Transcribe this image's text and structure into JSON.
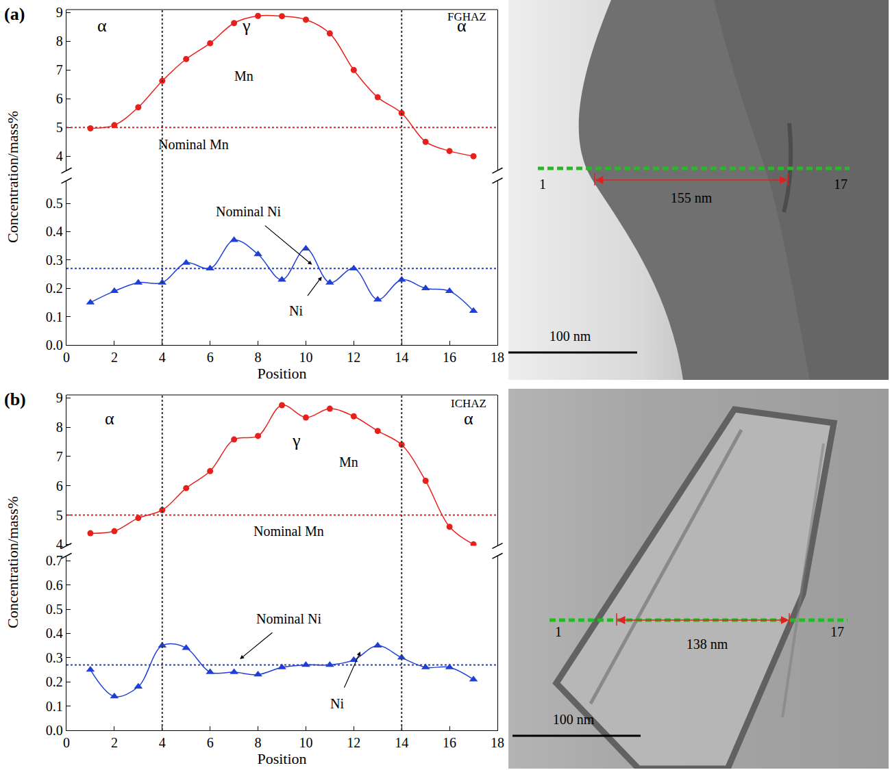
{
  "chart_data": [
    {
      "type": "line",
      "panel_label": "(a)",
      "region_label": "FGHAZ",
      "xlabel": "Position",
      "ylabel": "Concentration/mass%",
      "x": [
        1,
        2,
        3,
        4,
        5,
        6,
        7,
        8,
        9,
        10,
        11,
        12,
        13,
        14,
        15,
        16,
        17
      ],
      "series": [
        {
          "name": "Mn",
          "color": "#e8201c",
          "marker": "circle",
          "line_style": "spline",
          "axis": "y2",
          "values": [
            4.97,
            5.08,
            5.7,
            6.62,
            7.38,
            7.93,
            8.63,
            8.88,
            8.87,
            8.75,
            8.27,
            7.0,
            6.05,
            5.5,
            4.5,
            4.18,
            4.0
          ]
        },
        {
          "name": "Ni",
          "color": "#1f3fd6",
          "marker": "triangle-up",
          "line_style": "spline",
          "values": [
            0.15,
            0.19,
            0.22,
            0.22,
            0.29,
            0.27,
            0.37,
            0.32,
            0.23,
            0.34,
            0.22,
            0.27,
            0.16,
            0.23,
            0.2,
            0.19,
            0.12
          ]
        }
      ],
      "reference_lines": [
        {
          "label": "Nominal Mn",
          "value": 5,
          "axis": "y2",
          "color": "#e8201c",
          "line_style": "dot"
        },
        {
          "label": "Nominal Ni",
          "value": 0.27,
          "color": "#1f3fd6",
          "line_style": "dot"
        }
      ],
      "boundaries": [
        4,
        14
      ],
      "phase_labels": [
        "α",
        "γ",
        "α"
      ],
      "xlim": [
        0,
        18
      ],
      "xticks": [
        0,
        2,
        4,
        6,
        8,
        10,
        12,
        14,
        16,
        18
      ],
      "ylim": [
        0,
        0.58
      ],
      "yticks": [
        {
          "value": 0,
          "label": "0.0"
        },
        0.1,
        0.2,
        0.3,
        0.4,
        0.5
      ],
      "y2lim": [
        3.5,
        9.1
      ],
      "y2ticks": [
        4,
        5,
        6,
        7,
        8,
        9
      ],
      "grid": false
    },
    {
      "type": "line",
      "panel_label": "(b)",
      "region_label": "ICHAZ",
      "xlabel": "Position",
      "ylabel": "Concentration/mass%",
      "x": [
        1,
        2,
        3,
        4,
        5,
        6,
        7,
        8,
        9,
        10,
        11,
        12,
        13,
        14,
        15,
        16,
        17
      ],
      "series": [
        {
          "name": "Mn",
          "color": "#e8201c",
          "marker": "circle",
          "line_style": "spline",
          "axis": "y2",
          "values": [
            4.38,
            4.45,
            4.9,
            5.17,
            5.92,
            6.5,
            7.58,
            7.7,
            8.75,
            8.33,
            8.63,
            8.37,
            7.87,
            7.4,
            6.17,
            4.6,
            4.0
          ]
        },
        {
          "name": "Ni",
          "color": "#1f3fd6",
          "marker": "triangle-up",
          "line_style": "spline",
          "values": [
            0.25,
            0.14,
            0.18,
            0.35,
            0.34,
            0.24,
            0.24,
            0.23,
            0.26,
            0.27,
            0.27,
            0.29,
            0.35,
            0.3,
            0.26,
            0.26,
            0.21
          ]
        }
      ],
      "reference_lines": [
        {
          "label": "Nominal Mn",
          "value": 5,
          "axis": "y2",
          "color": "#e8201c",
          "line_style": "dot"
        },
        {
          "label": "Nominal Ni",
          "value": 0.27,
          "color": "#1f3fd6",
          "line_style": "dot"
        }
      ],
      "boundaries": [
        4,
        14
      ],
      "phase_labels": [
        "α",
        "γ",
        "α"
      ],
      "xlim": [
        0,
        18
      ],
      "xticks": [
        0,
        2,
        4,
        6,
        8,
        10,
        12,
        14,
        16,
        18
      ],
      "ylim": [
        0,
        0.72
      ],
      "yticks": [
        {
          "value": 0,
          "label": "0.0"
        },
        0.1,
        0.2,
        0.3,
        0.4,
        0.5,
        0.6,
        0.7
      ],
      "y2lim": [
        3.95,
        9.1
      ],
      "y2ticks": [
        4,
        5,
        6,
        7,
        8,
        9
      ],
      "grid": false
    }
  ],
  "micrographs": [
    {
      "panel": "(a)",
      "start_label": "1",
      "end_label": "17",
      "length_label": "155 nm",
      "scale_label": "100 nm"
    },
    {
      "panel": "(b)",
      "start_label": "1",
      "end_label": "17",
      "length_label": "138 nm",
      "scale_label": "100 nm"
    }
  ]
}
